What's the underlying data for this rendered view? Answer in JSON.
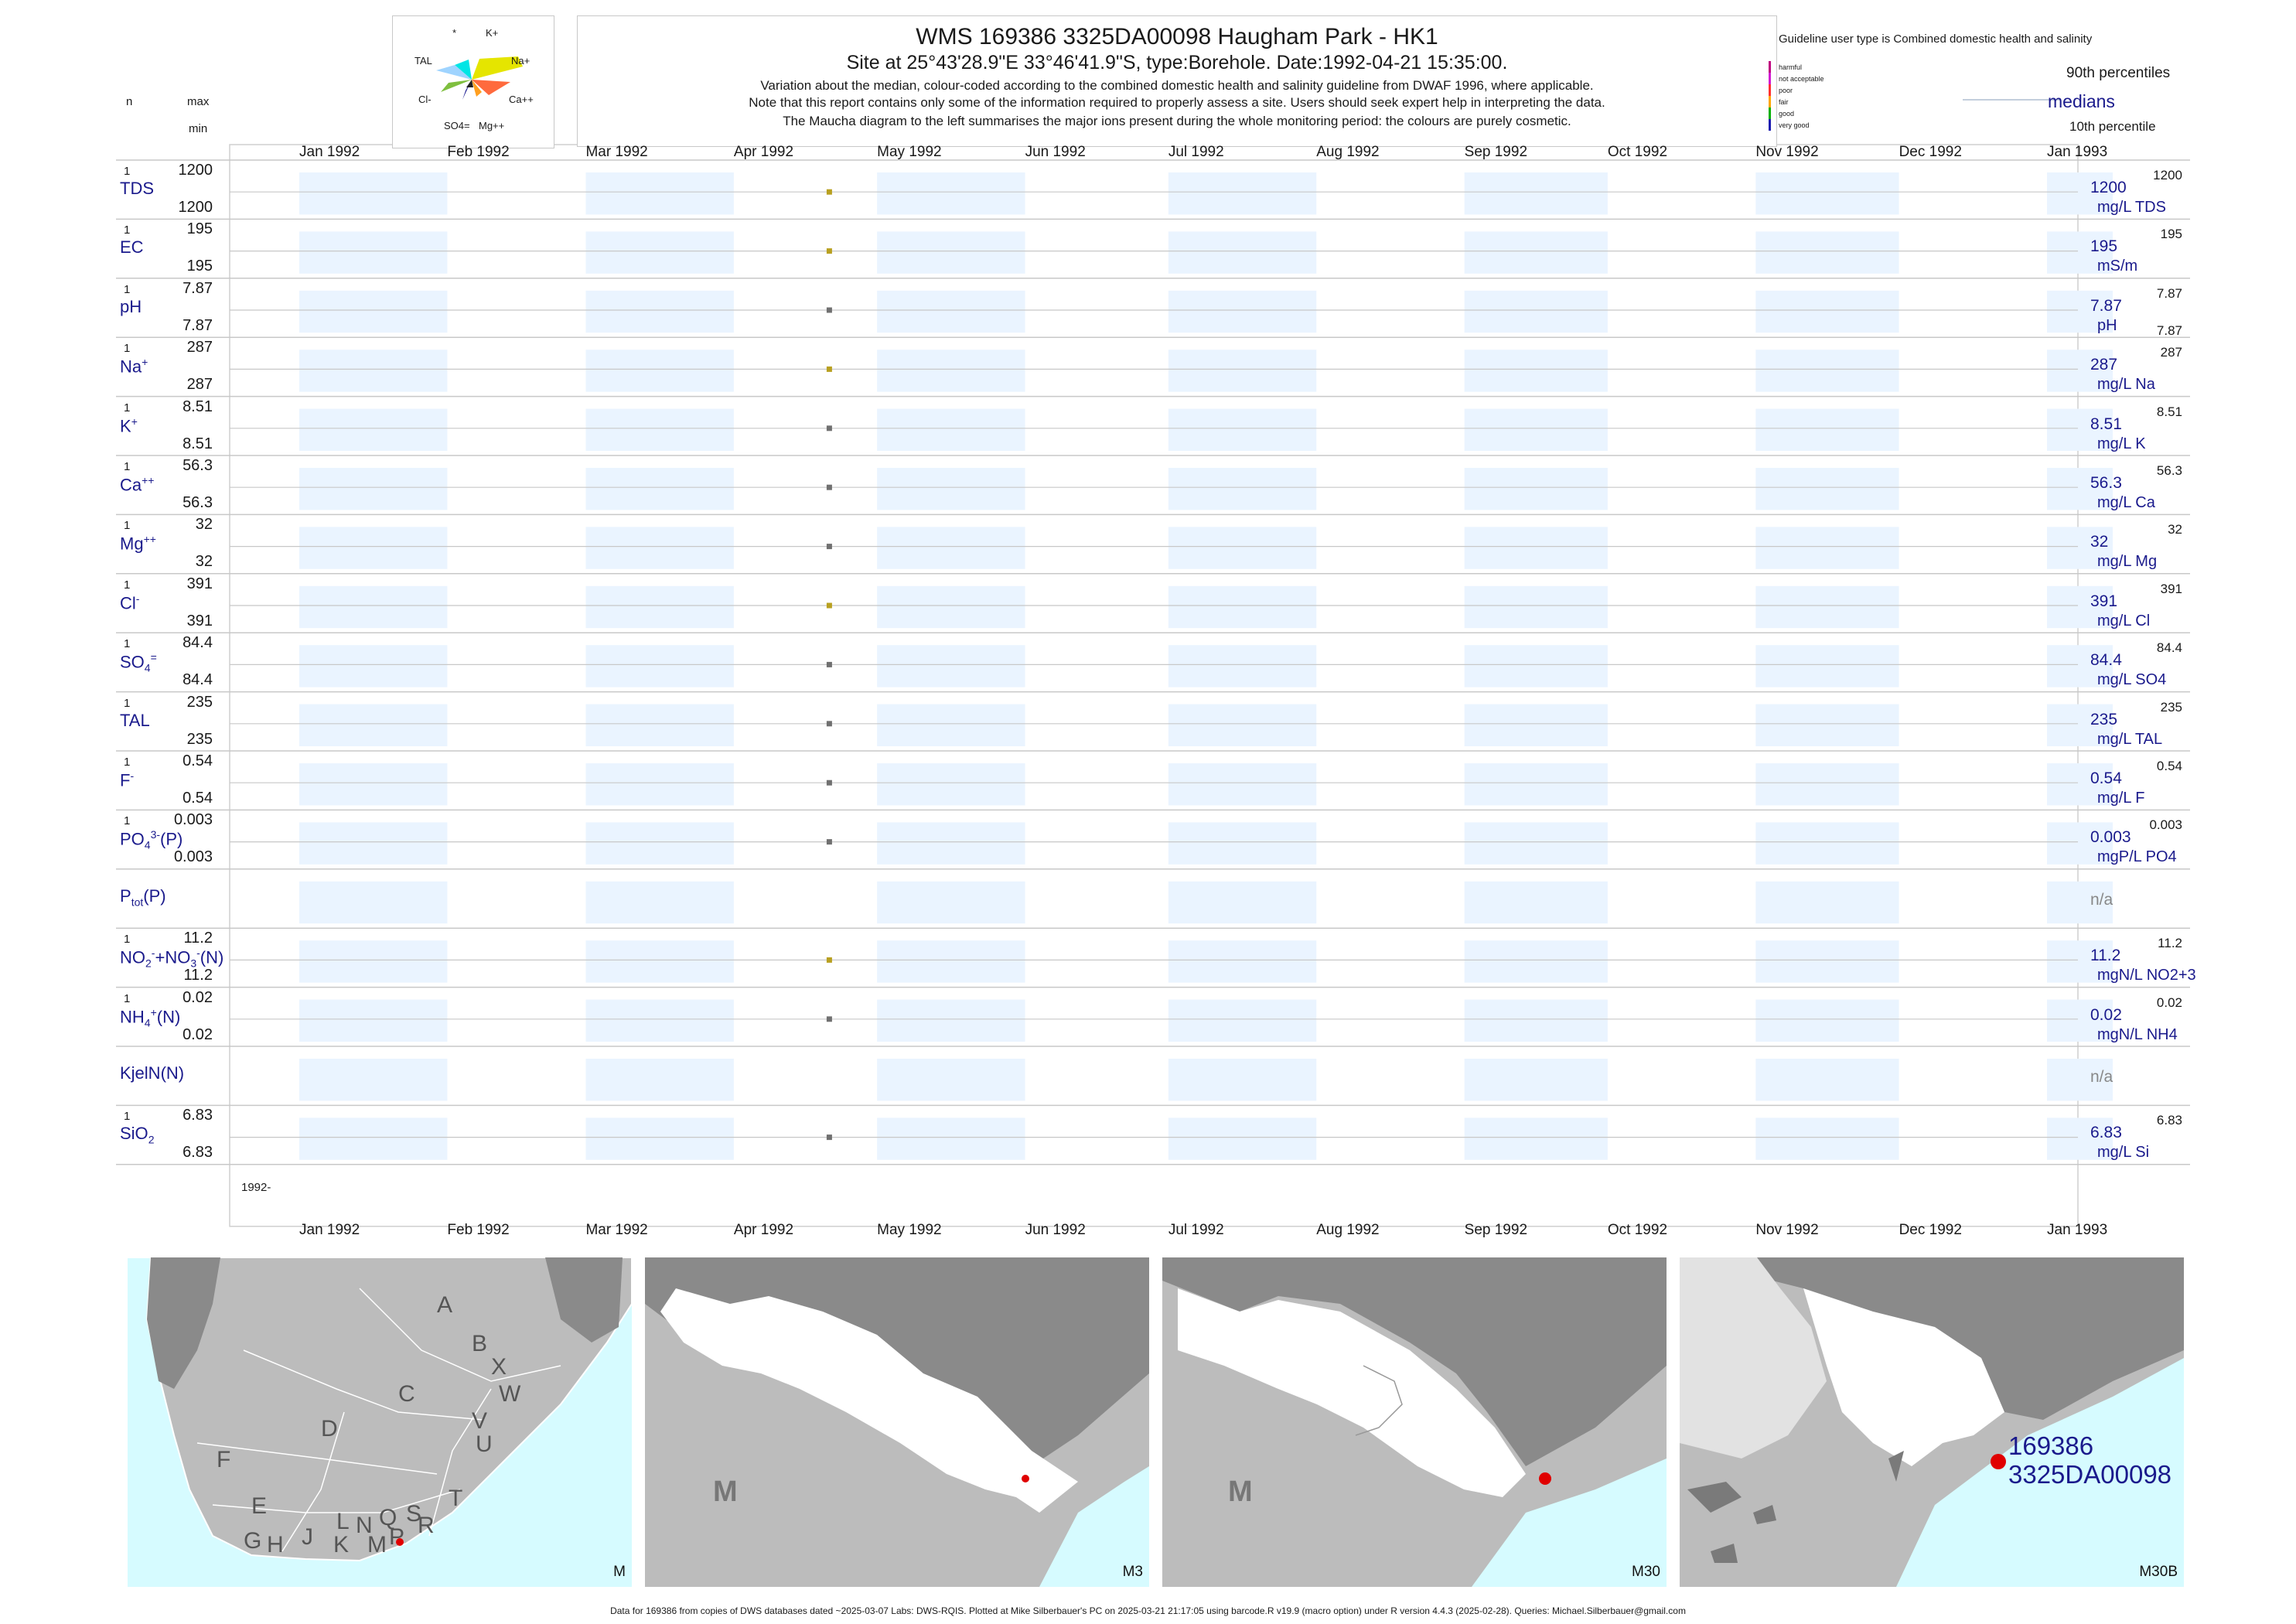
{
  "header": {
    "title": "WMS 169386 3325DA00098 Haugham Park - HK1",
    "subtitle": "Site at 25°43'28.9\"E 33°46'41.9\"S, type:Borehole. Date:1992-04-21 15:35:00.",
    "note1": "Variation about the median,  colour-coded according to the combined domestic health and salinity guideline from DWAF 1996, where applicable.",
    "note2": "Note that this report contains only some of the information required to properly assess a site. Users should seek expert help in interpreting the data.",
    "note3": "The Maucha diagram to the left summarises the major ions present during the whole monitoring period: the colours are purely cosmetic."
  },
  "column_labels": {
    "n": "n",
    "max": "max",
    "min": "min"
  },
  "maucha": {
    "labels": {
      "star": "*",
      "k": "K+",
      "tal": "TAL",
      "na": "Na+",
      "cl": "Cl-",
      "ca": "Ca++",
      "so4": "SO4=",
      "mg": "Mg++"
    },
    "colors": {
      "k": "#00e5e5",
      "na": "#e5e500",
      "tal": "#9fd4ff",
      "cl": "#7fbf3f",
      "ca": "#ff6a3d",
      "so4": "#2d2d99",
      "mg": "#ff9f1f"
    }
  },
  "legend": {
    "title": "Guideline user type is Combined domestic health and salinity",
    "categories": [
      {
        "label": "harmful",
        "color": "#c0007f"
      },
      {
        "label": "not acceptable",
        "color": "#d21ad2"
      },
      {
        "label": "poor",
        "color": "#ff3030"
      },
      {
        "label": "fair",
        "color": "#ffa500"
      },
      {
        "label": "good",
        "color": "#00b000"
      },
      {
        "label": "very good",
        "color": "#1a1ab0"
      }
    ],
    "p90": "90th percentiles",
    "medians": "medians",
    "p10": "10th percentile"
  },
  "chart_data": {
    "type": "scatter",
    "x_range": [
      "1992-01-01",
      "1993-01-01"
    ],
    "month_labels": [
      "Jan 1992",
      "Feb 1992",
      "Mar 1992",
      "Apr 1992",
      "May 1992",
      "Jun 1992",
      "Jul 1992",
      "Aug 1992",
      "Sep 1992",
      "Oct 1992",
      "Nov 1992",
      "Dec 1992",
      "Jan 1993"
    ],
    "sample_date": "1992-04-21",
    "bottom_year_label": "1992-",
    "rows": [
      {
        "label": "TDS",
        "n": "1",
        "max": "1200",
        "min": "1200",
        "value": 1200,
        "median": "1200",
        "unit": "mg/L TDS",
        "p90": "1200",
        "p10": "",
        "color": "#b8a020"
      },
      {
        "label": "EC",
        "n": "1",
        "max": "195",
        "min": "195",
        "value": 195,
        "median": "195",
        "unit": "mS/m",
        "p90": "195",
        "p10": "",
        "color": "#b8a020"
      },
      {
        "label": "pH",
        "n": "1",
        "max": "7.87",
        "min": "7.87",
        "value": 7.87,
        "median": "7.87",
        "unit": "pH",
        "p90": "7.87",
        "p10": "7.87",
        "color": "#707070"
      },
      {
        "label": "Na",
        "sup": "+",
        "n": "1",
        "max": "287",
        "min": "287",
        "value": 287,
        "median": "287",
        "unit": "mg/L Na",
        "p90": "287",
        "p10": "",
        "color": "#b8a020"
      },
      {
        "label": "K",
        "sup": "+",
        "n": "1",
        "max": "8.51",
        "min": "8.51",
        "value": 8.51,
        "median": "8.51",
        "unit": "mg/L K",
        "p90": "8.51",
        "p10": "",
        "color": "#707070"
      },
      {
        "label": "Ca",
        "sup": "++",
        "n": "1",
        "max": "56.3",
        "min": "56.3",
        "value": 56.3,
        "median": "56.3",
        "unit": "mg/L Ca",
        "p90": "56.3",
        "p10": "",
        "color": "#707070"
      },
      {
        "label": "Mg",
        "sup": "++",
        "n": "1",
        "max": "32",
        "min": "32",
        "value": 32,
        "median": "32",
        "unit": "mg/L Mg",
        "p90": "32",
        "p10": "",
        "color": "#707070"
      },
      {
        "label": "Cl",
        "sup": "-",
        "n": "1",
        "max": "391",
        "min": "391",
        "value": 391,
        "median": "391",
        "unit": "mg/L Cl",
        "p90": "391",
        "p10": "",
        "color": "#b8a020"
      },
      {
        "label": "SO",
        "sub": "4",
        "sup": "=",
        "n": "1",
        "max": "84.4",
        "min": "84.4",
        "value": 84.4,
        "median": "84.4",
        "unit": "mg/L SO4",
        "p90": "84.4",
        "p10": "",
        "color": "#707070"
      },
      {
        "label": "TAL",
        "n": "1",
        "max": "235",
        "min": "235",
        "value": 235,
        "median": "235",
        "unit": "mg/L TAL",
        "p90": "235",
        "p10": "",
        "color": "#707070"
      },
      {
        "label": "F",
        "sup": "-",
        "n": "1",
        "max": "0.54",
        "min": "0.54",
        "value": 0.54,
        "median": "0.54",
        "unit": "mg/L F",
        "p90": "0.54",
        "p10": "",
        "color": "#707070"
      },
      {
        "label": "PO",
        "sub": "4",
        "sup": "3-",
        "tail": "(P)",
        "n": "1",
        "max": "0.003",
        "min": "0.003",
        "value": 0.003,
        "median": "0.003",
        "unit": "mgP/L PO4",
        "p90": "0.003",
        "p10": "",
        "color": "#707070"
      },
      {
        "label": "P",
        "sub": "tot",
        "tail": "(P)",
        "n": "",
        "max": "",
        "min": "",
        "value": null,
        "median": "n/a",
        "unit": "",
        "p90": "",
        "p10": "",
        "color": "#707070"
      },
      {
        "label": "NO",
        "sub": "2",
        "sup": "-",
        "tail": "+NO",
        "sub2": "3",
        "sup2": "-",
        "tail2": "(N)",
        "n": "1",
        "max": "11.2",
        "min": "11.2",
        "value": 11.2,
        "median": "11.2",
        "unit": "mgN/L NO2+3",
        "p90": "11.2",
        "p10": "",
        "color": "#b8a020"
      },
      {
        "label": "NH",
        "sub": "4",
        "sup": "+",
        "tail": "(N)",
        "n": "1",
        "max": "0.02",
        "min": "0.02",
        "value": 0.02,
        "median": "0.02",
        "unit": "mgN/L NH4",
        "p90": "0.02",
        "p10": "",
        "color": "#707070"
      },
      {
        "label": "KjelN(N)",
        "n": "",
        "max": "",
        "min": "",
        "value": null,
        "median": "n/a",
        "unit": "",
        "p90": "",
        "p10": "",
        "color": "#707070"
      },
      {
        "label": "SiO",
        "sub": "2",
        "n": "1",
        "max": "6.83",
        "min": "6.83",
        "value": 6.83,
        "median": "6.83",
        "unit": "mg/L Si",
        "p90": "6.83",
        "p10": "",
        "color": "#707070"
      }
    ]
  },
  "maps": {
    "panels": [
      {
        "label": "M"
      },
      {
        "label": "M3",
        "region": "M"
      },
      {
        "label": "M30",
        "region": "M"
      },
      {
        "label": "M30B",
        "site_id": "169386",
        "site_code": "3325DA00098"
      }
    ],
    "regions": [
      "A",
      "B",
      "X",
      "C",
      "W",
      "D",
      "V",
      "U",
      "F",
      "T",
      "E",
      "L",
      "N",
      "Q",
      "S",
      "R",
      "G",
      "H",
      "J",
      "K",
      "M",
      "P"
    ]
  },
  "footer": "Data for 169386 from copies of DWS databases dated ~2025-03-07 Labs: DWS-RQIS. Plotted at Mike Silberbauer's PC on 2025-03-21 21:17:05 using barcode.R v19.9 (macro option) under R version 4.4.3 (2025-02-28). Queries: Michael.Silberbauer@gmail.com"
}
